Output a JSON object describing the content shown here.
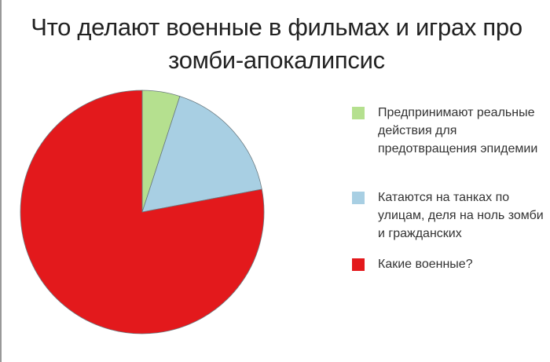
{
  "chart_data": {
    "type": "pie",
    "title": "Что делают военные в фильмах и играх про зомби-апокалипсис",
    "legend_position": "right",
    "slices": [
      {
        "label": "Предпринимают реальные действия для предотвращения эпидемии",
        "value": 5,
        "color": "#b5e08f"
      },
      {
        "label": "Катаются на танках по улицам, деля на ноль зомби и гражданских",
        "value": 17,
        "color": "#a8cfe3"
      },
      {
        "label": "Какие военные?",
        "value": 78,
        "color": "#e3191c"
      }
    ]
  }
}
